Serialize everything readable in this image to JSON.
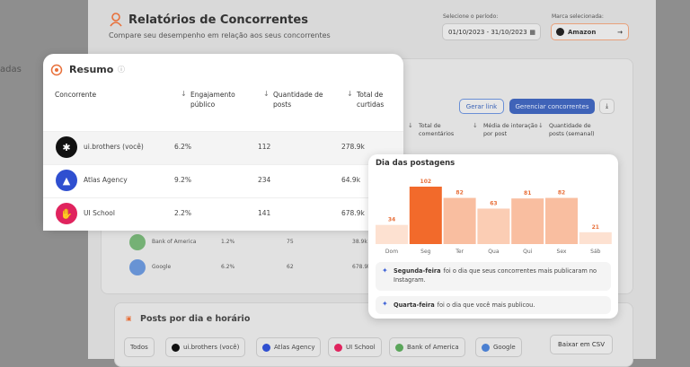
{
  "sidebar": {
    "partial_label": "adas"
  },
  "header": {
    "title": "Relatórios de Concorrentes",
    "subtitle": "Compare seu desempenho em relação aos seus concorrentes",
    "period_label": "Selecione o período:",
    "period": "01/10/2023 - 31/10/2023",
    "brand_label": "Marca selecionada:",
    "brand": "Amazon"
  },
  "background_table": {
    "buttons": [
      "Gerar link",
      "Gerenciar concorrentes"
    ],
    "columns": [
      "Total de comentários",
      "Média de interação por post",
      "Quantidade de posts (semanal)"
    ],
    "rows": [
      [
        "Bank of America",
        "1.2%",
        "75",
        "38.9k"
      ],
      [
        "Google",
        "6.2%",
        "62",
        "678.9k"
      ]
    ]
  },
  "posts_section": {
    "title": "Posts por dia e horário",
    "filters": [
      "Todos",
      "ui.brothers (você)",
      "Atlas Agency",
      "UI School",
      "Bank of America",
      "Google"
    ],
    "download": "Baixar em CSV"
  },
  "summary": {
    "title": "Resumo",
    "columns": [
      "Concorrente",
      "Engajamento público",
      "Quantidade de posts",
      "Total de curtidas"
    ],
    "rows": [
      [
        "ui.brothers (você)",
        "6.2%",
        "112",
        "278.9k"
      ],
      [
        "Atlas Agency",
        "9.2%",
        "234",
        "64.9k"
      ],
      [
        "UI School",
        "2.2%",
        "141",
        "678.9k"
      ]
    ]
  },
  "posting_days": {
    "title": "Dia das postagens",
    "chart": {
      "type": "bar",
      "categories": [
        "Dom",
        "Seg",
        "Ter",
        "Qua",
        "Qui",
        "Sex",
        "Sáb"
      ],
      "values": [
        34,
        102,
        82,
        63,
        81,
        82,
        21
      ],
      "colors": [
        "#fde1d1",
        "#f26a2b",
        "#f9bea0",
        "#fbcdb4",
        "#f9bea0",
        "#f9bea0",
        "#fde1d1"
      ]
    },
    "insights": [
      {
        "highlight": "Segunda-feira",
        "text": "foi o dia que seus concorrentes mais publicaram no Instagram."
      },
      {
        "highlight": "Quarta-feira",
        "text": "foi o dia que você mais publicou."
      }
    ]
  }
}
